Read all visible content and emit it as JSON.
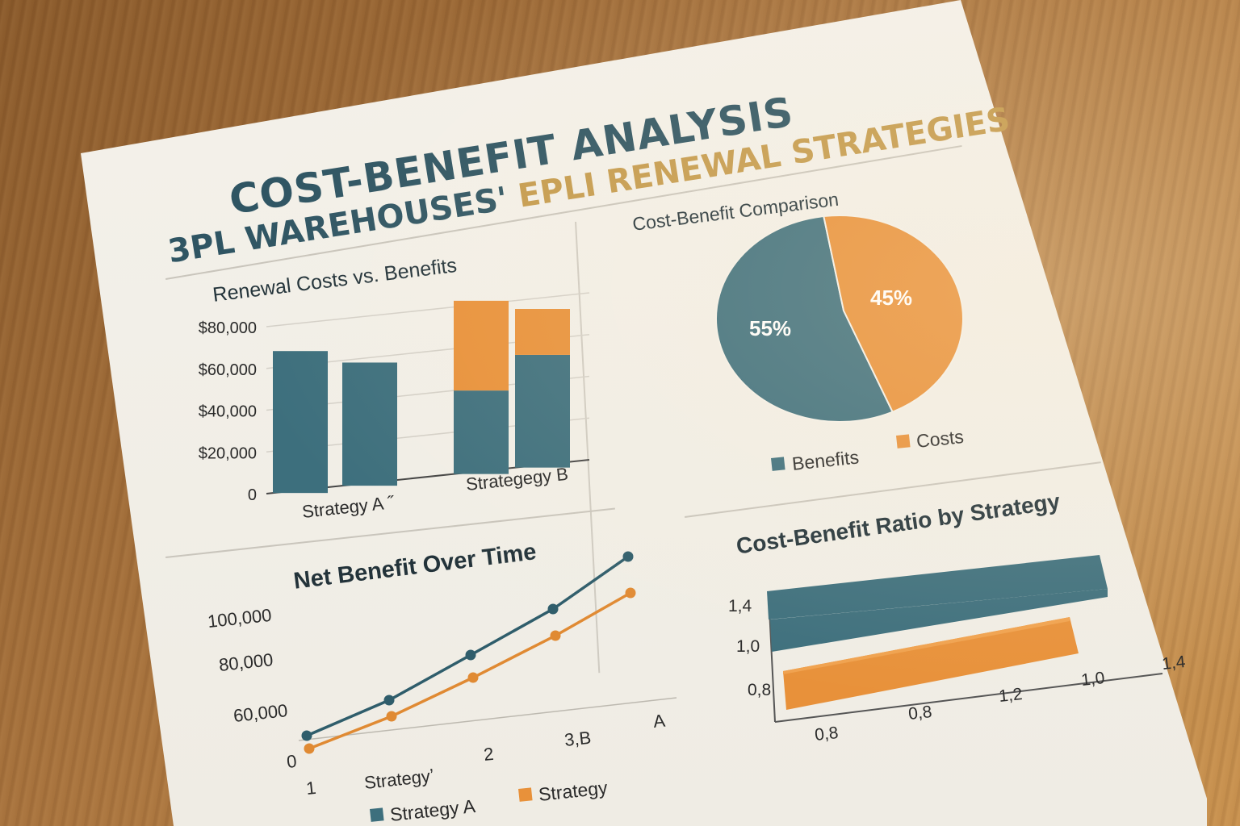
{
  "header": {
    "title_line1": "COST-BENEFIT ANALYSIS",
    "title_line2_dark": "3PL WAREHOUSES'",
    "title_line2_accent": "EPLI RENEWAL STRATEGIES"
  },
  "colors": {
    "teal": "#3d6f7d",
    "orange": "#e8913a",
    "title": "#2f5563",
    "accent": "#c49a4c"
  },
  "chart_data": [
    {
      "type": "bar",
      "title": "Renewal Costs vs. Benefits",
      "y_ticks": [
        "$80,000",
        "$60,000",
        "$40,000",
        "$20,000",
        "0"
      ],
      "x_labels": [
        "Strategy A ˝",
        "Strategegy B"
      ],
      "ylim": [
        0,
        80000
      ],
      "bars": [
        {
          "group": "Strategy A",
          "teal": 68000,
          "orange": 0
        },
        {
          "group": "Strategy A",
          "teal": 59000,
          "orange": 0
        },
        {
          "group": "Strategy B",
          "teal": 40000,
          "orange": 43000
        },
        {
          "group": "Strategy B",
          "teal": 54000,
          "orange": 22000
        }
      ]
    },
    {
      "type": "pie",
      "title": "Cost-Benefit Comparison",
      "slices": [
        {
          "label": "Benefits",
          "value": 55,
          "display": "55%"
        },
        {
          "label": "Costs",
          "value": 45,
          "display": "45%"
        }
      ],
      "legend": [
        "Benefits",
        "Costs"
      ]
    },
    {
      "type": "line",
      "title": "Net Benefit Over Time",
      "y_ticks": [
        "100,000",
        "80,000",
        "60,000",
        "0"
      ],
      "x_labels": [
        "1",
        "Strategyʼ",
        "2",
        "3,B",
        "A"
      ],
      "legend": [
        "Strategy A",
        "Strategy"
      ],
      "series": [
        {
          "values": [
            0,
            20000,
            45000,
            70000,
            100000
          ]
        },
        {
          "values": [
            -8000,
            12000,
            32000,
            55000,
            80000
          ]
        }
      ]
    },
    {
      "type": "bar",
      "title": "Cost-Benefit Ratio by Strategy",
      "y_ticks": [
        "1,4",
        "1,0",
        "0,8"
      ],
      "x_ticks": [
        "0,8",
        "0,8",
        "1,2",
        "1,0",
        "1,4"
      ],
      "bars": [
        {
          "color": "teal",
          "value": 1.45
        },
        {
          "color": "teal",
          "value": 1.38
        },
        {
          "color": "orange",
          "value": 1.38
        },
        {
          "color": "orange",
          "value": 1.36
        }
      ]
    }
  ]
}
